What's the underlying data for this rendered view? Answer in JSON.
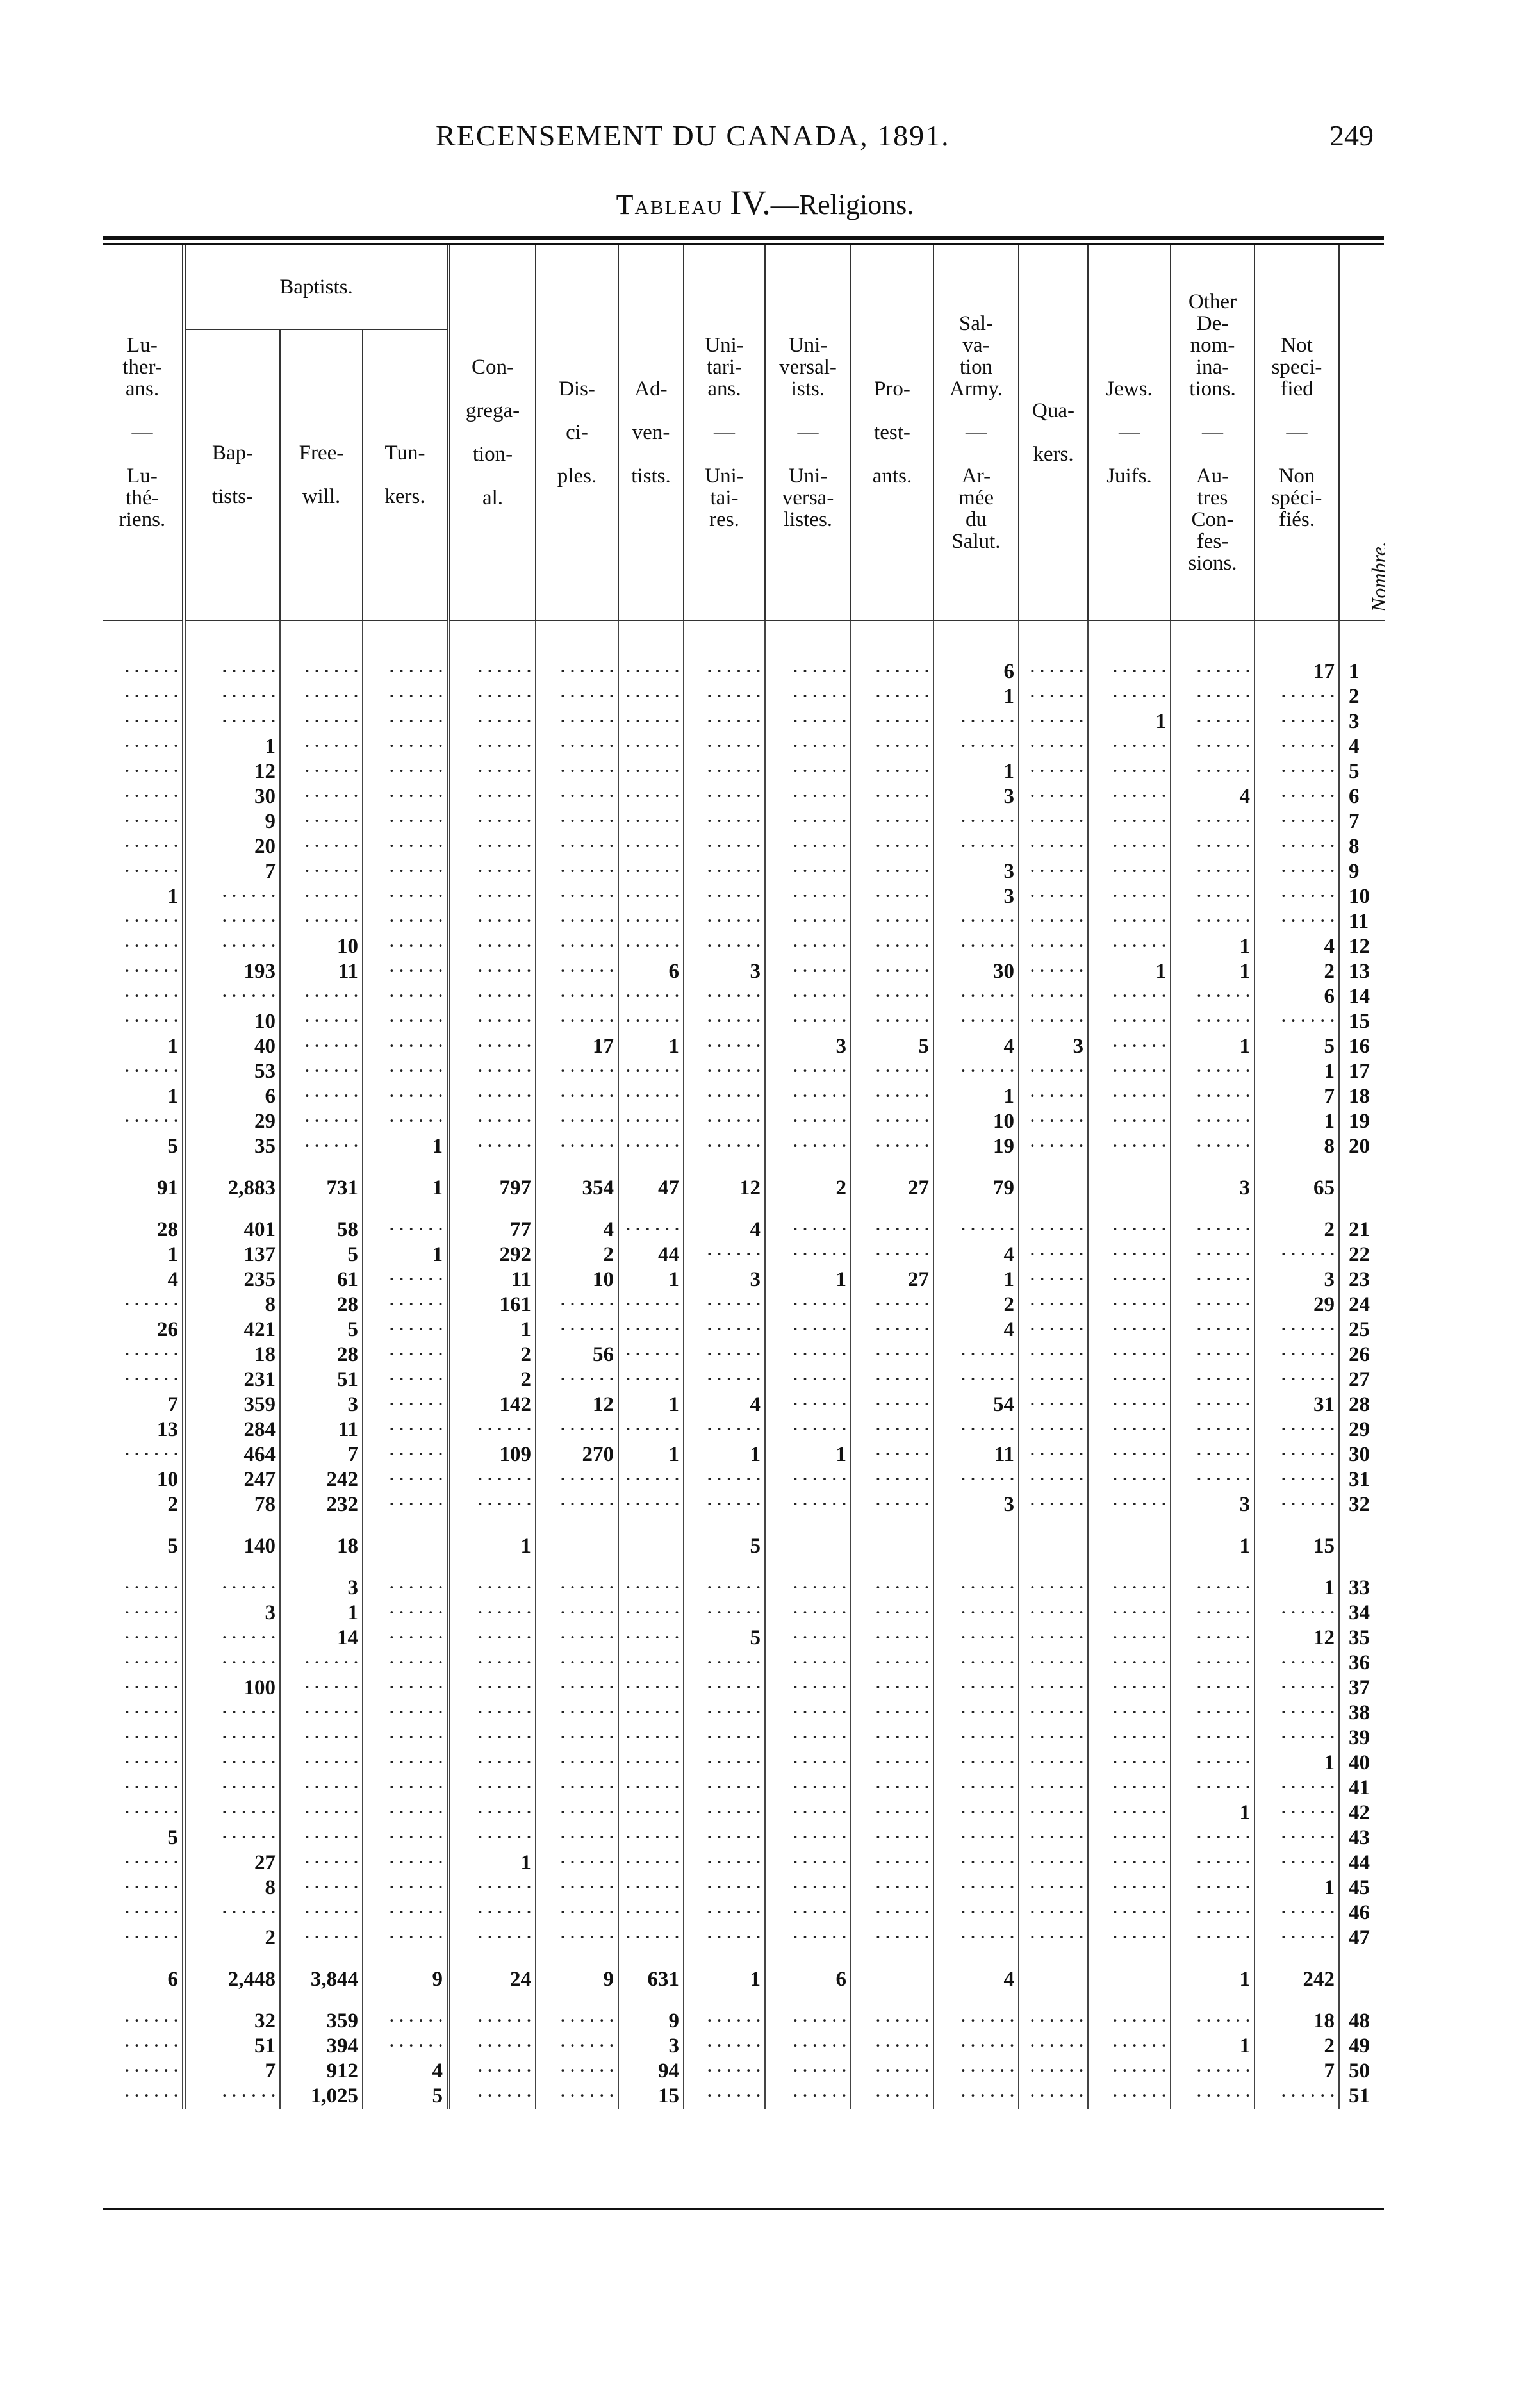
{
  "page": {
    "running_title": "RECENSEMENT DU CANADA, 1891.",
    "page_number": "249",
    "table_label": "Tableau",
    "table_numeral": "IV.",
    "table_subject": "—Religions."
  },
  "header": {
    "group_baptists": "Baptists.",
    "columns": [
      {
        "key": "lutherans",
        "text": "Lu-\nther-\nans.\n\n—\n\nLu-\nthé-\nriens."
      },
      {
        "key": "baptists",
        "text": "Bap-\n\ntists-"
      },
      {
        "key": "freewill",
        "text": "Free-\n\nwill."
      },
      {
        "key": "tunkers",
        "text": "Tun-\n\nkers."
      },
      {
        "key": "congregational",
        "text": "Con-\n\ngrega-\n\ntion-\n\nal."
      },
      {
        "key": "disciples",
        "text": "Dis-\n\nci-\n\nples."
      },
      {
        "key": "adventists",
        "text": "Ad-\n\nven-\n\ntists."
      },
      {
        "key": "unitarians",
        "text": "Uni-\ntari-\nans.\n\n—\n\nUni-\ntai-\nres."
      },
      {
        "key": "universalists",
        "text": "Uni-\nversal-\nists.\n\n—\n\nUni-\nversa-\nlistes."
      },
      {
        "key": "protestants",
        "text": "Pro-\n\ntest-\n\nants."
      },
      {
        "key": "salvation_army",
        "text": "Sal-\nva-\ntion\nArmy.\n\n—\n\nAr-\nmée\ndu\nSalut."
      },
      {
        "key": "quakers",
        "text": "Qua-\n\nkers."
      },
      {
        "key": "jews",
        "text": "Jews.\n\n—\n\nJuifs."
      },
      {
        "key": "other",
        "text": "Other\nDe-\nnom-\nina-\ntions.\n\n—\n\nAu-\ntres\nCon-\nfes-\nsions."
      },
      {
        "key": "not_specified",
        "text": "Not\nspeci-\nfied\n\n—\n\nNon\nspéci-\nfiés."
      },
      {
        "key": "nombre",
        "text": "Nombre."
      }
    ]
  },
  "rows": [
    {
      "n": "1",
      "v": [
        "",
        "",
        "",
        "",
        "",
        "",
        "",
        "",
        "",
        "",
        "6",
        "",
        "",
        "",
        "17"
      ]
    },
    {
      "n": "2",
      "v": [
        "",
        "",
        "",
        "",
        "",
        "",
        "",
        "",
        "",
        "",
        "1",
        "",
        "",
        "",
        ""
      ]
    },
    {
      "n": "3",
      "v": [
        "",
        "",
        "",
        "",
        "",
        "",
        "",
        "",
        "",
        "",
        "",
        "",
        "1",
        "",
        ""
      ]
    },
    {
      "n": "4",
      "v": [
        "",
        "1",
        "",
        "",
        "",
        "",
        "",
        "",
        "",
        "",
        "",
        "",
        "",
        "",
        ""
      ]
    },
    {
      "n": "5",
      "v": [
        "",
        "12",
        "",
        "",
        "",
        "",
        "",
        "",
        "",
        "",
        "1",
        "",
        "",
        "",
        ""
      ]
    },
    {
      "n": "6",
      "v": [
        "",
        "30",
        "",
        "",
        "",
        "",
        "",
        "",
        "",
        "",
        "3",
        "",
        "",
        "4",
        ""
      ]
    },
    {
      "n": "7",
      "v": [
        "",
        "9",
        "",
        "",
        "",
        "",
        "",
        "",
        "",
        "",
        "",
        "",
        "",
        "",
        ""
      ]
    },
    {
      "n": "8",
      "v": [
        "",
        "20",
        "",
        "",
        "",
        "",
        "",
        "",
        "",
        "",
        "",
        "",
        "",
        "",
        ""
      ]
    },
    {
      "n": "9",
      "v": [
        "",
        "7",
        "",
        "",
        "",
        "",
        "",
        "",
        "",
        "",
        "3",
        "",
        "",
        "",
        ""
      ]
    },
    {
      "n": "10",
      "v": [
        "1",
        "",
        "",
        "",
        "",
        "",
        "",
        "",
        "",
        "",
        "3",
        "",
        "",
        "",
        ""
      ]
    },
    {
      "n": "11",
      "v": [
        "",
        "",
        "",
        "",
        "",
        "",
        "",
        "",
        "",
        "",
        "",
        "",
        "",
        "",
        ""
      ]
    },
    {
      "n": "12",
      "v": [
        "",
        "",
        "10",
        "",
        "",
        "",
        "",
        "",
        "",
        "",
        "",
        "",
        "",
        "1",
        "4"
      ]
    },
    {
      "n": "13",
      "v": [
        "",
        "193",
        "11",
        "",
        "",
        "",
        "6",
        "3",
        "",
        "",
        "30",
        "",
        "1",
        "1",
        "2"
      ]
    },
    {
      "n": "14",
      "v": [
        "",
        "",
        "",
        "",
        "",
        "",
        "",
        "",
        "",
        "",
        "",
        "",
        "",
        "",
        "6"
      ]
    },
    {
      "n": "15",
      "v": [
        "",
        "10",
        "",
        "",
        "",
        "",
        "",
        "",
        "",
        "",
        "",
        "",
        "",
        "",
        ""
      ]
    },
    {
      "n": "16",
      "v": [
        "1",
        "40",
        "",
        "",
        "",
        "17",
        "1",
        "",
        "3",
        "5",
        "4",
        "3",
        "",
        "1",
        "5"
      ]
    },
    {
      "n": "17",
      "v": [
        "",
        "53",
        "",
        "",
        "",
        "",
        "",
        "",
        "",
        "",
        "",
        "",
        "",
        "",
        "1"
      ]
    },
    {
      "n": "18",
      "v": [
        "1",
        "6",
        "",
        "",
        "",
        "",
        "",
        "",
        "",
        "",
        "1",
        "",
        "",
        "",
        "7"
      ]
    },
    {
      "n": "19",
      "v": [
        "",
        "29",
        "",
        "",
        "",
        "",
        "",
        "",
        "",
        "",
        "10",
        "",
        "",
        "",
        "1"
      ]
    },
    {
      "n": "20",
      "v": [
        "5",
        "35",
        "",
        "1",
        "",
        "",
        "",
        "",
        "",
        "",
        "19",
        "",
        "",
        "",
        "8"
      ]
    },
    {
      "n": "",
      "total": true,
      "v": [
        "91",
        "2,883",
        "731",
        "1",
        "797",
        "354",
        "47",
        "12",
        "2",
        "27",
        "79",
        "",
        "",
        "3",
        "65"
      ]
    },
    {
      "n": "21",
      "v": [
        "28",
        "401",
        "58",
        "",
        "77",
        "4",
        "",
        "4",
        "",
        "",
        "",
        "",
        "",
        "",
        "2"
      ]
    },
    {
      "n": "22",
      "v": [
        "1",
        "137",
        "5",
        "1",
        "292",
        "2",
        "44",
        "",
        "",
        "",
        "4",
        "",
        "",
        "",
        ""
      ]
    },
    {
      "n": "23",
      "v": [
        "4",
        "235",
        "61",
        "",
        "11",
        "10",
        "1",
        "3",
        "1",
        "27",
        "1",
        "",
        "",
        "",
        "3"
      ]
    },
    {
      "n": "24",
      "v": [
        "",
        "8",
        "28",
        "",
        "161",
        "",
        "",
        "",
        "",
        "",
        "2",
        "",
        "",
        "",
        "29"
      ]
    },
    {
      "n": "25",
      "v": [
        "26",
        "421",
        "5",
        "",
        "1",
        "",
        "",
        "",
        "",
        "",
        "4",
        "",
        "",
        "",
        ""
      ]
    },
    {
      "n": "26",
      "v": [
        "",
        "18",
        "28",
        "",
        "2",
        "56",
        "",
        "",
        "",
        "",
        "",
        "",
        "",
        "",
        ""
      ]
    },
    {
      "n": "27",
      "v": [
        "",
        "231",
        "51",
        "",
        "2",
        "",
        "",
        "",
        "",
        "",
        "",
        "",
        "",
        "",
        ""
      ]
    },
    {
      "n": "28",
      "v": [
        "7",
        "359",
        "3",
        "",
        "142",
        "12",
        "1",
        "4",
        "",
        "",
        "54",
        "",
        "",
        "",
        "31"
      ]
    },
    {
      "n": "29",
      "v": [
        "13",
        "284",
        "11",
        "",
        "",
        "",
        "",
        "",
        "",
        "",
        "",
        "",
        "",
        "",
        ""
      ]
    },
    {
      "n": "30",
      "v": [
        "",
        "464",
        "7",
        "",
        "109",
        "270",
        "1",
        "1",
        "1",
        "",
        "11",
        "",
        "",
        "",
        ""
      ]
    },
    {
      "n": "31",
      "v": [
        "10",
        "247",
        "242",
        "",
        "",
        "",
        "",
        "",
        "",
        "",
        "",
        "",
        "",
        "",
        ""
      ]
    },
    {
      "n": "32",
      "v": [
        "2",
        "78",
        "232",
        "",
        "",
        "",
        "",
        "",
        "",
        "",
        "3",
        "",
        "",
        "3",
        ""
      ]
    },
    {
      "n": "",
      "total": true,
      "v": [
        "5",
        "140",
        "18",
        "",
        "1",
        "",
        "",
        "5",
        "",
        "",
        "",
        "",
        "",
        "1",
        "15"
      ]
    },
    {
      "n": "33",
      "v": [
        "",
        "",
        "3",
        "",
        "",
        "",
        "",
        "",
        "",
        "",
        "",
        "",
        "",
        "",
        "1"
      ]
    },
    {
      "n": "34",
      "v": [
        "",
        "3",
        "1",
        "",
        "",
        "",
        "",
        "",
        "",
        "",
        "",
        "",
        "",
        "",
        ""
      ]
    },
    {
      "n": "35",
      "v": [
        "",
        "",
        "14",
        "",
        "",
        "",
        "",
        "5",
        "",
        "",
        "",
        "",
        "",
        "",
        "12"
      ]
    },
    {
      "n": "36",
      "v": [
        "",
        "",
        "",
        "",
        "",
        "",
        "",
        "",
        "",
        "",
        "",
        "",
        "",
        "",
        ""
      ]
    },
    {
      "n": "37",
      "v": [
        "",
        "100",
        "",
        "",
        "",
        "",
        "",
        "",
        "",
        "",
        "",
        "",
        "",
        "",
        ""
      ]
    },
    {
      "n": "38",
      "v": [
        "",
        "",
        "",
        "",
        "",
        "",
        "",
        "",
        "",
        "",
        "",
        "",
        "",
        "",
        ""
      ]
    },
    {
      "n": "39",
      "v": [
        "",
        "",
        "",
        "",
        "",
        "",
        "",
        "",
        "",
        "",
        "",
        "",
        "",
        "",
        ""
      ]
    },
    {
      "n": "40",
      "v": [
        "",
        "",
        "",
        "",
        "",
        "",
        "",
        "",
        "",
        "",
        "",
        "",
        "",
        "",
        "1"
      ]
    },
    {
      "n": "41",
      "v": [
        "",
        "",
        "",
        "",
        "",
        "",
        "",
        "",
        "",
        "",
        "",
        "",
        "",
        "",
        ""
      ]
    },
    {
      "n": "42",
      "v": [
        "",
        "",
        "",
        "",
        "",
        "",
        "",
        "",
        "",
        "",
        "",
        "",
        "",
        "1",
        ""
      ]
    },
    {
      "n": "43",
      "v": [
        "5",
        "",
        "",
        "",
        "",
        "",
        "",
        "",
        "",
        "",
        "",
        "",
        "",
        "",
        ""
      ]
    },
    {
      "n": "44",
      "v": [
        "",
        "27",
        "",
        "",
        "1",
        "",
        "",
        "",
        "",
        "",
        "",
        "",
        "",
        "",
        ""
      ]
    },
    {
      "n": "45",
      "v": [
        "",
        "8",
        "",
        "",
        "",
        "",
        "",
        "",
        "",
        "",
        "",
        "",
        "",
        "",
        "1"
      ]
    },
    {
      "n": "46",
      "v": [
        "",
        "",
        "",
        "",
        "",
        "",
        "",
        "",
        "",
        "",
        "",
        "",
        "",
        "",
        ""
      ]
    },
    {
      "n": "47",
      "v": [
        "",
        "2",
        "",
        "",
        "",
        "",
        "",
        "",
        "",
        "",
        "",
        "",
        "",
        "",
        ""
      ]
    },
    {
      "n": "",
      "total": true,
      "v": [
        "6",
        "2,448",
        "3,844",
        "9",
        "24",
        "9",
        "631",
        "1",
        "6",
        "",
        "4",
        "",
        "",
        "1",
        "242"
      ]
    },
    {
      "n": "48",
      "v": [
        "",
        "32",
        "359",
        "",
        "",
        "",
        "9",
        "",
        "",
        "",
        "",
        "",
        "",
        "",
        "18"
      ]
    },
    {
      "n": "49",
      "v": [
        "",
        "51",
        "394",
        "",
        "",
        "",
        "3",
        "",
        "",
        "",
        "",
        "",
        "",
        "1",
        "2"
      ]
    },
    {
      "n": "50",
      "v": [
        "",
        "7",
        "912",
        "4",
        "",
        "",
        "94",
        "",
        "",
        "",
        "",
        "",
        "",
        "",
        "7"
      ]
    },
    {
      "n": "51",
      "v": [
        "",
        "",
        "1,025",
        "5",
        "",
        "",
        "15",
        "",
        "",
        "",
        "",
        "",
        "",
        "",
        ""
      ]
    }
  ]
}
